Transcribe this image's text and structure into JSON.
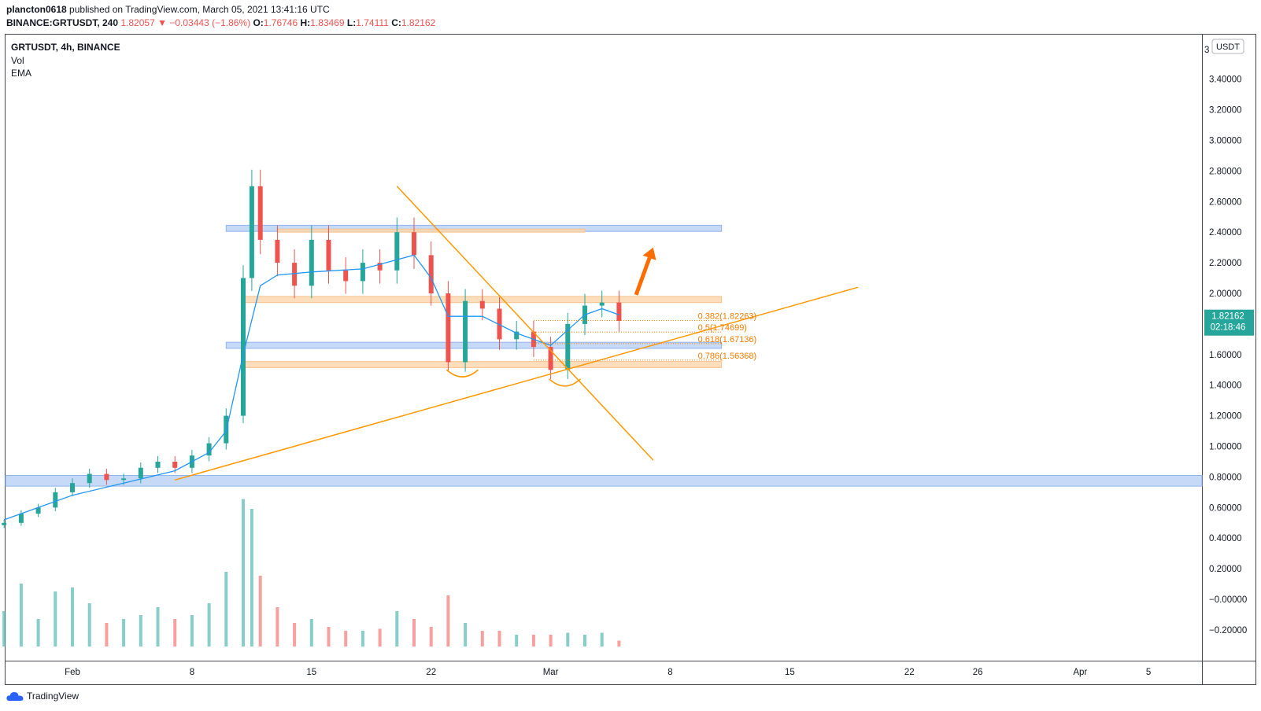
{
  "header": {
    "author": "plancton0618",
    "published_text": "published on TradingView.com, March 05, 2021 13:41:16 UTC",
    "symbol_line": "BINANCE:GRTUSDT, 240",
    "last": "1.82057",
    "change_arrow": "▼",
    "change": "−0.03443 (−1.86%)",
    "o_label": "O:",
    "o": "1.76746",
    "h_label": "H:",
    "h": "1.83469",
    "l_label": "L:",
    "l": "1.74111",
    "c_label": "C:",
    "c": "1.82162"
  },
  "legend": {
    "symbol": "GRTUSDT, 4h, BINANCE",
    "vol": "Vol",
    "ema": "EMA"
  },
  "currency_label": "USDT",
  "price_badge": {
    "price": "1.82162",
    "countdown": "02:18:46",
    "color": "#26a69a"
  },
  "branding": "TradingView",
  "colors": {
    "up": "#26a69a",
    "down": "#ef5350",
    "ema": "#2196f3",
    "fib": "#f57c00",
    "trendline": "#ff9800",
    "zone_blue": "#bcd2f5",
    "zone_orange": "#fbd7b0"
  },
  "chart_data": {
    "type": "candlestick",
    "symbol": "GRTUSDT",
    "interval": "4h",
    "exchange": "BINANCE",
    "y_ticks": [
      3.4,
      3.2,
      3.0,
      2.8,
      2.6,
      2.4,
      2.2,
      2.0,
      1.8,
      1.6,
      1.4,
      1.2,
      1.0,
      0.8,
      0.6,
      0.4,
      0.2,
      0.0,
      -0.2
    ],
    "y_tick_labels": [
      "3.40000",
      "3.20000",
      "3.00000",
      "2.80000",
      "2.60000",
      "2.40000",
      "2.20000",
      "2.00000",
      "1.80000",
      "1.60000",
      "1.40000",
      "1.20000",
      "1.00000",
      "0.80000",
      "0.60000",
      "0.40000",
      "0.20000",
      "−0.00000",
      "−0.20000"
    ],
    "y_top_label": "3",
    "x_tick_labels": [
      "Feb",
      "8",
      "15",
      "22",
      "Mar",
      "8",
      "15",
      "22",
      "26",
      "Apr",
      "5"
    ],
    "x_tick_dates": [
      "2021-02-01",
      "2021-02-08",
      "2021-02-15",
      "2021-02-22",
      "2021-03-01",
      "2021-03-08",
      "2021-03-15",
      "2021-03-22",
      "2021-03-26",
      "2021-04-01",
      "2021-04-05"
    ],
    "fib_levels": [
      {
        "label": "0.382(1.82263)",
        "price": 1.82263
      },
      {
        "label": "0.5(1.74699)",
        "price": 1.74699
      },
      {
        "label": "0.618(1.67136)",
        "price": 1.67136
      },
      {
        "label": "0.786(1.56368)",
        "price": 1.56368
      }
    ],
    "zones": [
      {
        "color": "blue",
        "from_date": "2021-02-10",
        "to_date": "2021-03-11",
        "low": 2.405,
        "high": 2.445
      },
      {
        "color": "orange",
        "from_date": "2021-02-13",
        "to_date": "2021-03-03",
        "low": 2.4,
        "high": 2.42
      },
      {
        "color": "orange",
        "from_date": "2021-02-11",
        "to_date": "2021-03-11",
        "low": 1.94,
        "high": 1.98
      },
      {
        "color": "blue",
        "from_date": "2021-02-10",
        "to_date": "2021-03-11",
        "low": 1.64,
        "high": 1.68
      },
      {
        "color": "orange",
        "from_date": "2021-02-11",
        "to_date": "2021-03-11",
        "low": 1.515,
        "high": 1.555
      },
      {
        "color": "blue",
        "from_date": "2021-01-28",
        "to_date": "2021-04-10",
        "low": 0.74,
        "high": 0.81
      }
    ],
    "trendlines": [
      {
        "from": [
          "2021-02-07",
          0.78
        ],
        "to": [
          "2021-03-19",
          2.04
        ]
      },
      {
        "from": [
          "2021-02-20",
          2.7
        ],
        "to": [
          "2021-03-07",
          0.91
        ]
      }
    ],
    "arrow": {
      "from": [
        "2021-03-06",
        1.99
      ],
      "to": [
        "2021-03-07",
        2.3
      ]
    },
    "price_series": [
      [
        "2021-01-28",
        0.5
      ],
      [
        "2021-01-29",
        0.56
      ],
      [
        "2021-01-30",
        0.6
      ],
      [
        "2021-01-31",
        0.7
      ],
      [
        "2021-02-01",
        0.76
      ],
      [
        "2021-02-02",
        0.82
      ],
      [
        "2021-02-03",
        0.78
      ],
      [
        "2021-02-04",
        0.79
      ],
      [
        "2021-02-05",
        0.86
      ],
      [
        "2021-02-06",
        0.9
      ],
      [
        "2021-02-07",
        0.86
      ],
      [
        "2021-02-08",
        0.94
      ],
      [
        "2021-02-09",
        1.02
      ],
      [
        "2021-02-10",
        1.2
      ],
      [
        "2021-02-11",
        2.1
      ],
      [
        "2021-02-11.5",
        2.7
      ],
      [
        "2021-02-12",
        2.35
      ],
      [
        "2021-02-13",
        2.2
      ],
      [
        "2021-02-14",
        2.05
      ],
      [
        "2021-02-15",
        2.35
      ],
      [
        "2021-02-16",
        2.15
      ],
      [
        "2021-02-17",
        2.08
      ],
      [
        "2021-02-18",
        2.2
      ],
      [
        "2021-02-19",
        2.15
      ],
      [
        "2021-02-20",
        2.4
      ],
      [
        "2021-02-21",
        2.25
      ],
      [
        "2021-02-22",
        2.0
      ],
      [
        "2021-02-23",
        1.55
      ],
      [
        "2021-02-24",
        1.95
      ],
      [
        "2021-02-25",
        1.9
      ],
      [
        "2021-02-26",
        1.7
      ],
      [
        "2021-02-27",
        1.75
      ],
      [
        "2021-02-28",
        1.65
      ],
      [
        "2021-03-01",
        1.5
      ],
      [
        "2021-03-02",
        1.8
      ],
      [
        "2021-03-03",
        1.92
      ],
      [
        "2021-03-04",
        1.94
      ],
      [
        "2021-03-05",
        1.82
      ]
    ],
    "ema_series": [
      [
        "2021-01-28",
        0.52
      ],
      [
        "2021-02-01",
        0.68
      ],
      [
        "2021-02-04",
        0.76
      ],
      [
        "2021-02-07",
        0.84
      ],
      [
        "2021-02-09",
        0.96
      ],
      [
        "2021-02-10",
        1.1
      ],
      [
        "2021-02-11",
        1.6
      ],
      [
        "2021-02-12",
        2.05
      ],
      [
        "2021-02-13",
        2.12
      ],
      [
        "2021-02-15",
        2.14
      ],
      [
        "2021-02-18",
        2.16
      ],
      [
        "2021-02-20",
        2.22
      ],
      [
        "2021-02-21",
        2.25
      ],
      [
        "2021-02-22",
        2.1
      ],
      [
        "2021-02-23",
        1.85
      ],
      [
        "2021-02-25",
        1.85
      ],
      [
        "2021-02-27",
        1.74
      ],
      [
        "2021-03-01",
        1.66
      ],
      [
        "2021-03-02",
        1.76
      ],
      [
        "2021-03-03",
        1.86
      ],
      [
        "2021-03-04",
        1.9
      ],
      [
        "2021-03-05",
        1.86
      ]
    ],
    "volume_series": [
      [
        "2021-01-28",
        0.18
      ],
      [
        "2021-01-29",
        0.32
      ],
      [
        "2021-01-30",
        0.14
      ],
      [
        "2021-01-31",
        0.28
      ],
      [
        "2021-02-01",
        0.3
      ],
      [
        "2021-02-02",
        0.22
      ],
      [
        "2021-02-03",
        0.12
      ],
      [
        "2021-02-04",
        0.14
      ],
      [
        "2021-02-05",
        0.16
      ],
      [
        "2021-02-06",
        0.2
      ],
      [
        "2021-02-07",
        0.14
      ],
      [
        "2021-02-08",
        0.16
      ],
      [
        "2021-02-09",
        0.22
      ],
      [
        "2021-02-10",
        0.38
      ],
      [
        "2021-02-11",
        0.75
      ],
      [
        "2021-02-11.5",
        0.7
      ],
      [
        "2021-02-12",
        0.36
      ],
      [
        "2021-02-13",
        0.2
      ],
      [
        "2021-02-14",
        0.12
      ],
      [
        "2021-02-15",
        0.14
      ],
      [
        "2021-02-16",
        0.1
      ],
      [
        "2021-02-17",
        0.08
      ],
      [
        "2021-02-18",
        0.08
      ],
      [
        "2021-02-19",
        0.09
      ],
      [
        "2021-02-20",
        0.18
      ],
      [
        "2021-02-21",
        0.14
      ],
      [
        "2021-02-22",
        0.1
      ],
      [
        "2021-02-23",
        0.26
      ],
      [
        "2021-02-24",
        0.12
      ],
      [
        "2021-02-25",
        0.08
      ],
      [
        "2021-02-26",
        0.08
      ],
      [
        "2021-02-27",
        0.06
      ],
      [
        "2021-02-28",
        0.06
      ],
      [
        "2021-03-01",
        0.06
      ],
      [
        "2021-03-02",
        0.07
      ],
      [
        "2021-03-03",
        0.06
      ],
      [
        "2021-03-04",
        0.07
      ],
      [
        "2021-03-05",
        0.03
      ]
    ]
  }
}
